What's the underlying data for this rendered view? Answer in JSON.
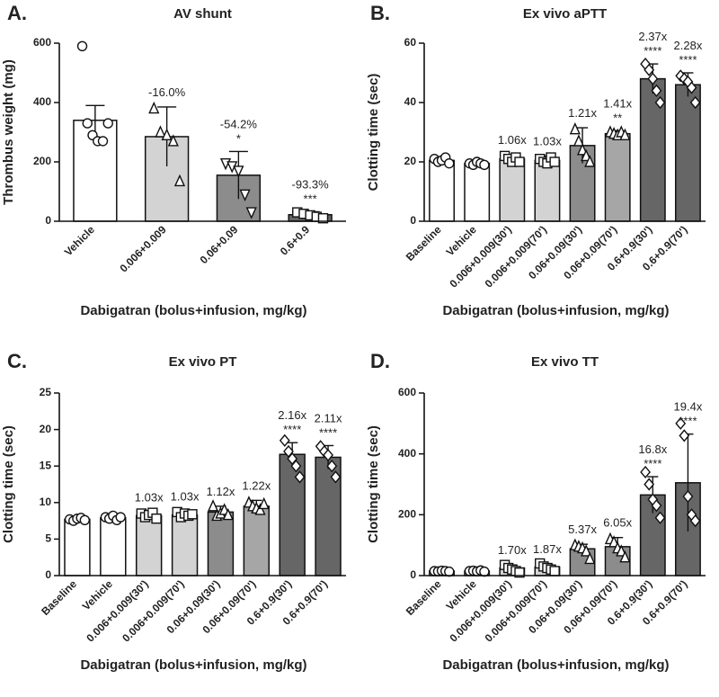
{
  "chart_data": [
    {
      "type": "bar",
      "panel": "A.",
      "title": "AV shunt",
      "y_label": "Thrombus weight (mg)",
      "x_label": "Dabigatran (bolus+infusion, mg/kg)",
      "categories": [
        "Vehicle",
        "0.006+0.009",
        "0.06+0.09",
        "0.6+0.9"
      ],
      "values": [
        340,
        285,
        155,
        22
      ],
      "errors": [
        50,
        100,
        80,
        10
      ],
      "points": [
        [
          590,
          330,
          290,
          270,
          270,
          330
        ],
        [
          380,
          300,
          290,
          270,
          135
        ],
        [
          195,
          185,
          170,
          90,
          30
        ],
        [
          30,
          25,
          20,
          15,
          10
        ]
      ],
      "markers": [
        "circle",
        "triangle",
        "triangle-down",
        "square"
      ],
      "colors": [
        "#ffffff",
        "#d3d3d3",
        "#8c8c8c",
        "#666666"
      ],
      "annotations": [
        null,
        "-16.0%",
        "-54.2%",
        "-93.3%"
      ],
      "stars": [
        null,
        null,
        "*",
        "***"
      ],
      "ylim": [
        0,
        600
      ],
      "yticks": [
        0,
        200,
        400,
        600
      ]
    },
    {
      "type": "bar",
      "panel": "B.",
      "title": "Ex vivo aPTT",
      "y_label": "Clotting time (sec)",
      "x_label": "Dabigatran (bolus+infusion, mg/kg)",
      "categories": [
        "Baseline",
        "Vehicle",
        "0.006+0.009(30')",
        "0.006+0.009(70')",
        "0.06+0.09(30')",
        "0.06+0.09(70')",
        "0.6+0.9(30')",
        "0.6+0.9(70')"
      ],
      "values": [
        20.5,
        19.5,
        21,
        20.5,
        25.5,
        29.5,
        48,
        46
      ],
      "errors": [
        1,
        1,
        1.5,
        1.5,
        6,
        1,
        5,
        4
      ],
      "points": [
        [
          21,
          20,
          20.5,
          21.5,
          19.5
        ],
        [
          19.5,
          19,
          20,
          19.5,
          19
        ],
        [
          22,
          21,
          20,
          21.5,
          20
        ],
        [
          21,
          20,
          19.5,
          21.5,
          20
        ],
        [
          31,
          27,
          24,
          22,
          20
        ],
        [
          30,
          29.5,
          29,
          30,
          29
        ],
        [
          53,
          51,
          48,
          44,
          40
        ],
        [
          49,
          48,
          47,
          45,
          40
        ]
      ],
      "markers": [
        "circle",
        "circle",
        "square",
        "square",
        "triangle",
        "triangle",
        "diamond",
        "diamond"
      ],
      "colors": [
        "#ffffff",
        "#ffffff",
        "#d3d3d3",
        "#d3d3d3",
        "#8c8c8c",
        "#a6a6a6",
        "#666666",
        "#666666"
      ],
      "annotations": [
        null,
        null,
        "1.06x",
        "1.03x",
        "1.21x",
        "1.41x",
        "2.37x",
        "2.28x"
      ],
      "stars": [
        null,
        null,
        null,
        null,
        null,
        "**",
        "****",
        "****"
      ],
      "ylim": [
        0,
        60
      ],
      "yticks": [
        0,
        20,
        40,
        60
      ]
    },
    {
      "type": "bar",
      "panel": "C.",
      "title": "Ex vivo PT",
      "y_label": "Clotting time (sec)",
      "x_label": "Dabigatran (bolus+infusion, mg/kg)",
      "categories": [
        "Baseline",
        "Vehicle",
        "0.006+0.009(30')",
        "0.006+0.009(70')",
        "0.06+0.09(30')",
        "0.06+0.09(70')",
        "0.6+0.9(30')",
        "0.6+0.9(70')"
      ],
      "values": [
        7.7,
        7.9,
        8.2,
        8.3,
        8.7,
        9.5,
        16.6,
        16.2
      ],
      "errors": [
        0.4,
        0.4,
        0.5,
        0.5,
        0.8,
        0.8,
        1.6,
        1.6
      ],
      "points": [
        [
          7.7,
          7.5,
          7.8,
          7.9,
          7.6
        ],
        [
          8,
          7.8,
          8.2,
          7.6,
          8
        ],
        [
          8.5,
          8,
          8.3,
          8.6,
          7.8
        ],
        [
          8.7,
          8,
          8.5,
          8.2,
          8.4
        ],
        [
          9.5,
          8.2,
          8.5,
          9,
          8.3
        ],
        [
          10,
          9.5,
          9.2,
          9,
          9.8
        ],
        [
          18.5,
          17,
          16,
          15,
          13.5
        ],
        [
          17.7,
          17,
          16.5,
          15,
          13.5
        ]
      ],
      "markers": [
        "circle",
        "circle",
        "square",
        "square",
        "triangle",
        "triangle",
        "diamond",
        "diamond"
      ],
      "colors": [
        "#ffffff",
        "#ffffff",
        "#d3d3d3",
        "#d3d3d3",
        "#8c8c8c",
        "#a6a6a6",
        "#666666",
        "#666666"
      ],
      "annotations": [
        null,
        null,
        "1.03x",
        "1.03x",
        "1.12x",
        "1.22x",
        "2.16x",
        "2.11x"
      ],
      "stars": [
        null,
        null,
        null,
        null,
        null,
        null,
        "****",
        "****"
      ],
      "ylim": [
        0,
        25
      ],
      "yticks": [
        0,
        5,
        10,
        15,
        20,
        25
      ]
    },
    {
      "type": "bar",
      "panel": "D.",
      "title": "Ex vivo TT",
      "y_label": "Clotting time (sec)",
      "x_label": "Dabigatran (bolus+infusion, mg/kg)",
      "categories": [
        "Baseline",
        "Vehicle",
        "0.006+0.009(30')",
        "0.006+0.009(70')",
        "0.06+0.09(30')",
        "0.06+0.09(70')",
        "0.6+0.9(30')",
        "0.6+0.9(70')"
      ],
      "values": [
        15,
        15,
        25,
        28,
        88,
        95,
        265,
        305
      ],
      "errors": [
        5,
        5,
        10,
        10,
        15,
        30,
        60,
        160
      ],
      "points": [
        [
          15,
          14,
          16,
          15,
          13
        ],
        [
          15,
          16,
          14,
          17,
          13
        ],
        [
          35,
          25,
          20,
          15,
          10
        ],
        [
          40,
          30,
          25,
          20,
          15
        ],
        [
          100,
          95,
          90,
          80,
          55
        ],
        [
          120,
          110,
          90,
          80,
          60
        ],
        [
          340,
          300,
          250,
          230,
          190
        ],
        [
          500,
          460,
          260,
          200,
          180
        ]
      ],
      "markers": [
        "circle",
        "circle",
        "square",
        "square",
        "triangle",
        "triangle",
        "diamond",
        "diamond"
      ],
      "colors": [
        "#ffffff",
        "#ffffff",
        "#d3d3d3",
        "#d3d3d3",
        "#8c8c8c",
        "#8c8c8c",
        "#666666",
        "#666666"
      ],
      "annotations": [
        null,
        null,
        "1.70x",
        "1.87x",
        "5.37x",
        "6.05x",
        "16.8x",
        "19.4x"
      ],
      "stars": [
        null,
        null,
        null,
        null,
        null,
        null,
        "****",
        "****"
      ],
      "ylim": [
        0,
        600
      ],
      "yticks": [
        0,
        200,
        400,
        600
      ]
    }
  ]
}
